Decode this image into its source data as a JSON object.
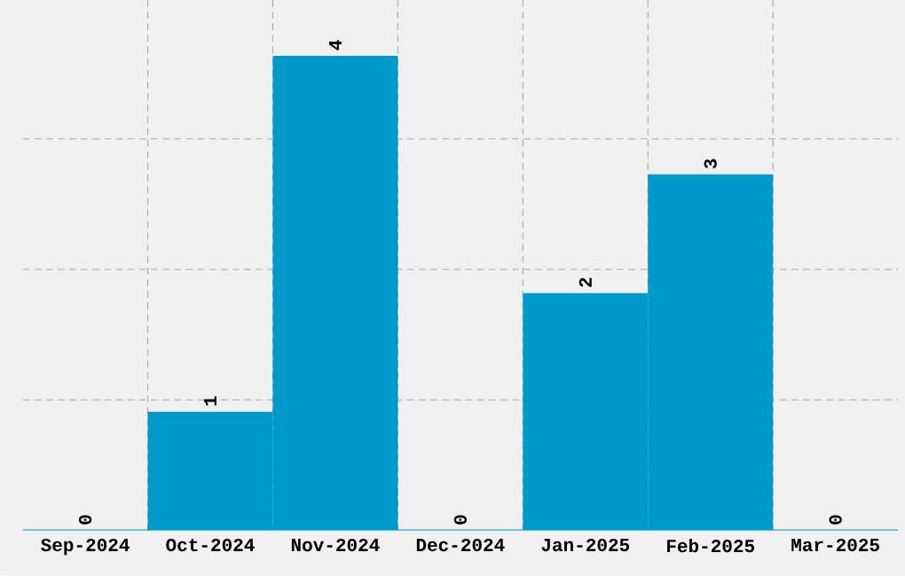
{
  "chart_data": {
    "type": "bar",
    "categories": [
      "Sep-2024",
      "Oct-2024",
      "Nov-2024",
      "Dec-2024",
      "Jan-2025",
      "Feb-2025",
      "Mar-2025"
    ],
    "values": [
      0,
      1,
      4,
      0,
      2,
      3,
      0
    ],
    "color": "#0099cc",
    "ylim": [
      0,
      4.47
    ],
    "yticks": [
      {
        "value": 1.1,
        "label": null
      },
      {
        "value": 2.2,
        "label": null
      },
      {
        "value": 3.3,
        "label": null
      }
    ],
    "grid": true,
    "data_labels": true,
    "tick_labels": "x"
  }
}
